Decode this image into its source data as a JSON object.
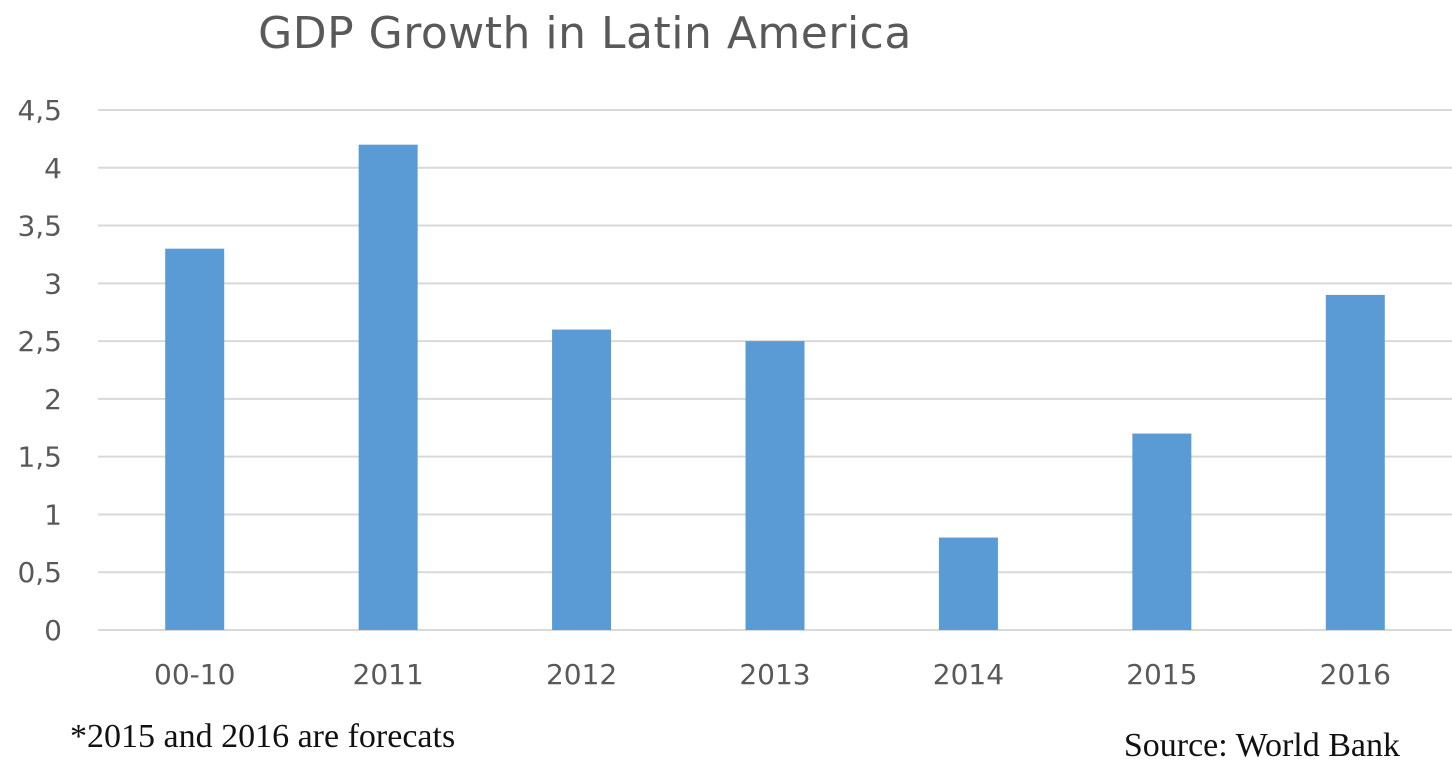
{
  "chart_data": {
    "type": "bar",
    "title": "GDP Growth in Latin America",
    "categories": [
      "00-10",
      "2011",
      "2012",
      "2013",
      "2014",
      "2015",
      "2016"
    ],
    "values": [
      3.3,
      4.2,
      2.6,
      2.5,
      0.8,
      1.7,
      2.9
    ],
    "ylim": [
      0,
      4.5
    ],
    "yticks": [
      0,
      0.5,
      1,
      1.5,
      2,
      2.5,
      3,
      3.5,
      4,
      4.5
    ],
    "ytick_labels": [
      "0",
      "0,5",
      "1",
      "1,5",
      "2",
      "2,5",
      "3",
      "3,5",
      "4",
      "4,5"
    ],
    "xlabel": "",
    "ylabel": "",
    "grid": true,
    "legend": "none",
    "bar_color": "#5b9bd5",
    "grid_color": "#d9d9d9"
  },
  "footnote": "*2015 and 2016 are forecats",
  "source": "Source: World Bank"
}
